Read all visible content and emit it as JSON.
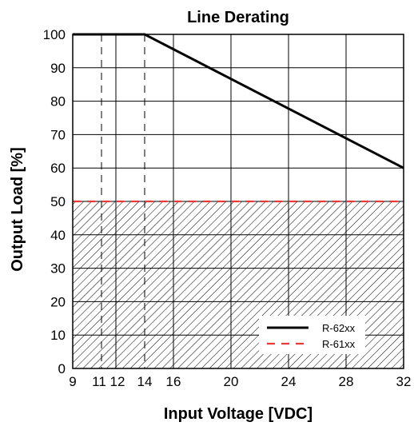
{
  "chart_data": {
    "type": "line",
    "title": "Line Derating",
    "xlabel": "Input Voltage [VDC]",
    "ylabel": "Output Load [%]",
    "xlim": [
      9,
      32
    ],
    "ylim": [
      0,
      100
    ],
    "x_ticks": [
      9,
      11,
      12,
      14,
      16,
      20,
      24,
      28,
      32
    ],
    "x_tick_labels": [
      "9",
      "11",
      "12",
      "14",
      "16",
      "20",
      "24",
      "28",
      "32"
    ],
    "x_dashed_markers": [
      11,
      14
    ],
    "y_ticks": [
      0,
      10,
      20,
      30,
      40,
      50,
      60,
      70,
      80,
      90,
      100
    ],
    "y_tick_labels": [
      "0",
      "10",
      "20",
      "30",
      "40",
      "50",
      "60",
      "70",
      "80",
      "90",
      "100"
    ],
    "grid": true,
    "hatched_region": {
      "y_from": 0,
      "y_to": 50
    },
    "legend_position": "bottom-right",
    "series": [
      {
        "name": "R-62xx",
        "color": "#000000",
        "style": "solid",
        "x": [
          9,
          14,
          32
        ],
        "y": [
          100,
          100,
          60
        ]
      },
      {
        "name": "R-61xx",
        "color": "#e83a3a",
        "style": "dashed",
        "x": [
          9,
          32
        ],
        "y": [
          50,
          50
        ]
      }
    ]
  }
}
